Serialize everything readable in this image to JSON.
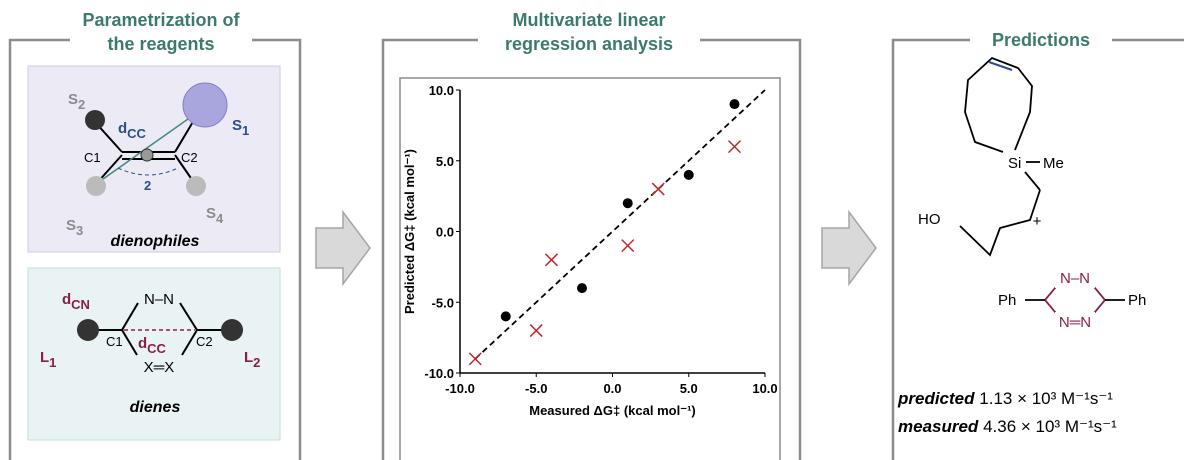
{
  "panels": [
    {
      "title": "Parametrization of the reagents",
      "dienophile": {
        "s2": [
          "S",
          "2"
        ],
        "dcc": [
          "d",
          "CC"
        ],
        "s1": [
          "S",
          "1"
        ],
        "c1": "C1",
        "c2": "C2",
        "angle": "2",
        "s3": [
          "S",
          "3"
        ],
        "s4": [
          "S",
          "4"
        ],
        "label": "dienophiles"
      },
      "diene": {
        "dcn": [
          "d",
          "CN"
        ],
        "nn": "N–N",
        "c1": "C1",
        "dcc": [
          "d",
          "CC"
        ],
        "c2": "C2",
        "xx": "X═X",
        "l1": [
          "L",
          "1"
        ],
        "l2": [
          "L",
          "2"
        ],
        "label": "dienes"
      }
    },
    {
      "title": "Multivariate linear regression analysis"
    },
    {
      "title": "Predictions",
      "silane": {
        "si": "Si",
        "me": "Me",
        "ho": "HO"
      },
      "plus": "+",
      "tetrazine": {
        "ph_left": "Ph",
        "ph_right": "Ph",
        "n_top": "N–N",
        "n_bottom": "N═N"
      },
      "predicted": {
        "label": "predicted",
        "value": "1.13 × 10³ M⁻¹s⁻¹"
      },
      "measured": {
        "label": "measured",
        "value": "4.36 × 10³ M⁻¹s⁻¹"
      }
    }
  ],
  "chart_data": {
    "type": "scatter",
    "x_label": "Measured ΔG‡ (kcal mol⁻¹)",
    "y_label": "Predicted ΔG‡ (kcal mol⁻¹)",
    "series": [
      {
        "color": "#000000",
        "marker": "circle",
        "x": [
          -7,
          -2,
          1,
          5,
          8
        ],
        "values": [
          -6,
          -4,
          2,
          4,
          9
        ]
      },
      {
        "color": "#c0282d",
        "marker": "cross",
        "x": [
          -9,
          -5,
          -4,
          1,
          3,
          8
        ],
        "values": [
          -9,
          -7,
          -2,
          -1,
          3,
          6
        ]
      }
    ],
    "fit_line": {
      "x": [
        -9,
        10
      ],
      "values": [
        -9,
        10
      ]
    },
    "xlim": [
      -10,
      10
    ],
    "ylim": [
      -10,
      10
    ],
    "xticks": [
      {
        "value": -10,
        "label": "-10.0"
      },
      {
        "value": -5,
        "label": "-5.0"
      },
      {
        "value": 0,
        "label": "0.0"
      },
      {
        "value": 5,
        "label": "5.0"
      },
      {
        "value": 10,
        "label": "10.0"
      }
    ],
    "yticks": [
      {
        "value": -10,
        "label": "-10.0"
      },
      {
        "value": -5,
        "label": "-5.0"
      },
      {
        "value": 0,
        "label": "0.0"
      },
      {
        "value": 5,
        "label": "5.0"
      },
      {
        "value": 10,
        "label": "10.0"
      }
    ]
  }
}
